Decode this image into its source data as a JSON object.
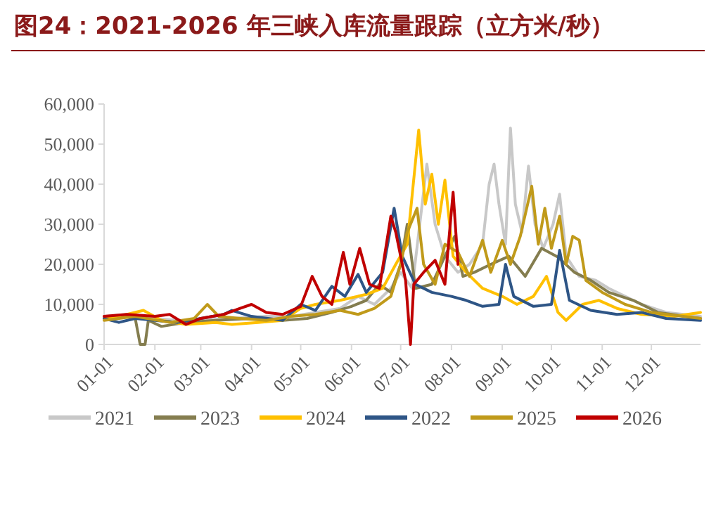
{
  "chart_data": {
    "type": "line",
    "title": "图24：2021-2026 年三峡入库流量跟踪（立方米/秒）",
    "xlim": [
      "--01-01",
      "--12-31"
    ],
    "xticks": [
      {
        "value": "--01-01",
        "label": "01-01"
      },
      {
        "value": "--02-01",
        "label": "02-01"
      },
      {
        "value": "--03-01",
        "label": "03-01"
      },
      {
        "value": "--04-01",
        "label": "04-01"
      },
      {
        "value": "--05-01",
        "label": "05-01"
      },
      {
        "value": "--06-01",
        "label": "06-01"
      },
      {
        "value": "--07-01",
        "label": "07-01"
      },
      {
        "value": "--08-01",
        "label": "08-01"
      },
      {
        "value": "--09-01",
        "label": "09-01"
      },
      {
        "value": "--10-01",
        "label": "10-01"
      },
      {
        "value": "--11-01",
        "label": "11-01"
      },
      {
        "value": "--12-01",
        "label": "12-01"
      }
    ],
    "ylim": [
      0,
      60000
    ],
    "yticks": [
      {
        "value": 0,
        "label": "0"
      },
      {
        "value": 10000,
        "label": "10,000"
      },
      {
        "value": 20000,
        "label": "20,000"
      },
      {
        "value": 30000,
        "label": "30,000"
      },
      {
        "value": 40000,
        "label": "40,000"
      },
      {
        "value": 50000,
        "label": "50,000"
      },
      {
        "value": 60000,
        "label": "60,000"
      }
    ],
    "grid": false,
    "legend": "bottom",
    "line_style": "solid",
    "series": [
      {
        "name": "2021",
        "color": "#c8c8c8",
        "x": [
          "--01-01",
          "--01-15",
          "--02-01",
          "--02-15",
          "--03-01",
          "--03-20",
          "--04-10",
          "--04-25",
          "--05-10",
          "--05-25",
          "--06-05",
          "--06-15",
          "--06-25",
          "--07-01",
          "--07-08",
          "--07-17",
          "--07-22",
          "--07-28",
          "--08-05",
          "--08-12",
          "--08-20",
          "--08-24",
          "--08-27",
          "--08-30",
          "--09-03",
          "--09-06",
          "--09-09",
          "--09-13",
          "--09-17",
          "--09-21",
          "--09-26",
          "--10-02",
          "--10-06",
          "--10-10",
          "--10-18",
          "--10-28",
          "--11-05",
          "--11-15",
          "--11-25",
          "--12-10",
          "--12-31"
        ],
        "values": [
          7000,
          7500,
          6500,
          6000,
          6000,
          6500,
          7000,
          7000,
          8000,
          9000,
          12000,
          10000,
          14000,
          18000,
          14000,
          45000,
          30000,
          22000,
          18000,
          20000,
          25000,
          40000,
          45000,
          35000,
          25000,
          54000,
          35000,
          28000,
          44500,
          30000,
          24000,
          30000,
          37500,
          22000,
          17000,
          16000,
          14000,
          12000,
          10000,
          8000,
          7000
        ]
      },
      {
        "name": "2023",
        "color": "#847d4f",
        "x": [
          "--01-01",
          "--01-15",
          "--01-20",
          "--01-23",
          "--01-26",
          "--01-28",
          "--02-05",
          "--02-20",
          "--03-10",
          "--04-01",
          "--04-20",
          "--05-05",
          "--05-20",
          "--06-01",
          "--06-10",
          "--06-18",
          "--06-25",
          "--07-01",
          "--07-05",
          "--07-10",
          "--07-20",
          "--07-28",
          "--08-03",
          "--08-08",
          "--08-15",
          "--08-25",
          "--09-05",
          "--09-15",
          "--09-25",
          "--10-05",
          "--10-15",
          "--10-25",
          "--11-05",
          "--11-20",
          "--12-05",
          "--12-31"
        ],
        "values": [
          6500,
          7000,
          6500,
          0,
          0,
          6000,
          4500,
          5500,
          6000,
          6500,
          6000,
          6500,
          8000,
          9500,
          11000,
          15000,
          13000,
          20000,
          30000,
          14000,
          15000,
          22000,
          27000,
          17000,
          18000,
          20000,
          22000,
          17000,
          24000,
          21800,
          18000,
          16000,
          13000,
          11000,
          8000,
          6500
        ]
      },
      {
        "name": "2024",
        "color": "#ffc000",
        "x": [
          "--01-01",
          "--01-15",
          "--01-25",
          "--02-05",
          "--02-20",
          "--03-10",
          "--03-20",
          "--04-05",
          "--04-20",
          "--05-01",
          "--05-10",
          "--05-25",
          "--06-10",
          "--06-20",
          "--06-28",
          "--07-05",
          "--07-12",
          "--07-16",
          "--07-20",
          "--07-24",
          "--07-28",
          "--08-02",
          "--08-10",
          "--08-20",
          "--09-01",
          "--09-10",
          "--09-20",
          "--09-28",
          "--10-05",
          "--10-10",
          "--10-20",
          "--10-30",
          "--11-10",
          "--11-25",
          "--12-15",
          "--12-31"
        ],
        "values": [
          6500,
          7500,
          8500,
          6000,
          5000,
          5500,
          5000,
          5500,
          6000,
          9000,
          10000,
          11000,
          12500,
          14000,
          20000,
          25000,
          53500,
          35000,
          42500,
          30000,
          41000,
          22000,
          18000,
          14000,
          12000,
          10000,
          12000,
          17000,
          8000,
          6000,
          10000,
          11000,
          9000,
          7500,
          7000,
          8000
        ]
      },
      {
        "name": "2022",
        "color": "#2e5586",
        "x": [
          "--01-01",
          "--01-10",
          "--01-20",
          "--02-01",
          "--02-15",
          "--03-01",
          "--03-15",
          "--03-20",
          "--04-01",
          "--04-20",
          "--05-01",
          "--05-10",
          "--05-20",
          "--05-28",
          "--06-05",
          "--06-10",
          "--06-20",
          "--06-27",
          "--07-02",
          "--07-10",
          "--07-20",
          "--08-01",
          "--08-10",
          "--08-20",
          "--08-30",
          "--09-03",
          "--09-08",
          "--09-20",
          "--10-01",
          "--10-06",
          "--10-12",
          "--10-25",
          "--11-10",
          "--11-25",
          "--12-10",
          "--12-31"
        ],
        "values": [
          6500,
          5500,
          6500,
          6000,
          5500,
          6500,
          7500,
          8500,
          7000,
          6000,
          10000,
          8500,
          14500,
          12000,
          17500,
          13000,
          18000,
          34000,
          22000,
          15000,
          13000,
          12000,
          11000,
          9500,
          10000,
          20000,
          12000,
          9500,
          10000,
          23500,
          11000,
          8500,
          7500,
          8000,
          6500,
          6000
        ]
      },
      {
        "name": "2025",
        "color": "#c09a1a",
        "x": [
          "--01-01",
          "--01-20",
          "--02-10",
          "--02-25",
          "--03-05",
          "--03-12",
          "--03-25",
          "--04-10",
          "--04-25",
          "--05-10",
          "--05-25",
          "--06-05",
          "--06-15",
          "--06-25",
          "--07-01",
          "--07-05",
          "--07-11",
          "--07-15",
          "--07-22",
          "--07-28",
          "--08-05",
          "--08-12",
          "--08-20",
          "--08-25",
          "--09-01",
          "--09-06",
          "--09-12",
          "--09-19",
          "--09-23",
          "--09-27",
          "--10-01",
          "--10-06",
          "--10-10",
          "--10-14",
          "--10-18",
          "--10-22",
          "--11-01",
          "--11-15",
          "--12-01",
          "--12-31"
        ],
        "values": [
          6000,
          7000,
          5500,
          6500,
          10000,
          7000,
          6500,
          6000,
          7000,
          7500,
          8500,
          7500,
          9000,
          12000,
          20000,
          28000,
          34000,
          20000,
          15000,
          25000,
          23000,
          17000,
          26000,
          18000,
          26000,
          20000,
          27000,
          39500,
          25000,
          34000,
          24000,
          32000,
          20000,
          27000,
          26000,
          16000,
          13000,
          10000,
          8000,
          6500
        ]
      },
      {
        "name": "2026",
        "color": "#c00000",
        "x": [
          "--01-01",
          "--01-15",
          "--02-01",
          "--02-10",
          "--02-20",
          "--03-01",
          "--03-15",
          "--03-25",
          "--04-01",
          "--04-10",
          "--04-20",
          "--05-01",
          "--05-08",
          "--05-14",
          "--05-20",
          "--05-27",
          "--05-31",
          "--06-06",
          "--06-12",
          "--06-18",
          "--06-25",
          "--06-28",
          "--07-04",
          "--07-07",
          "--07-09",
          "--07-15",
          "--07-22",
          "--07-28",
          "--08-02",
          "--08-05"
        ],
        "values": [
          7000,
          7500,
          7000,
          7500,
          5000,
          6500,
          7500,
          9000,
          10000,
          8000,
          7500,
          9500,
          17000,
          12000,
          10000,
          23000,
          15000,
          24000,
          15000,
          14000,
          32000,
          28000,
          16000,
          0,
          15000,
          18000,
          21000,
          15000,
          38000,
          20000
        ]
      }
    ]
  }
}
